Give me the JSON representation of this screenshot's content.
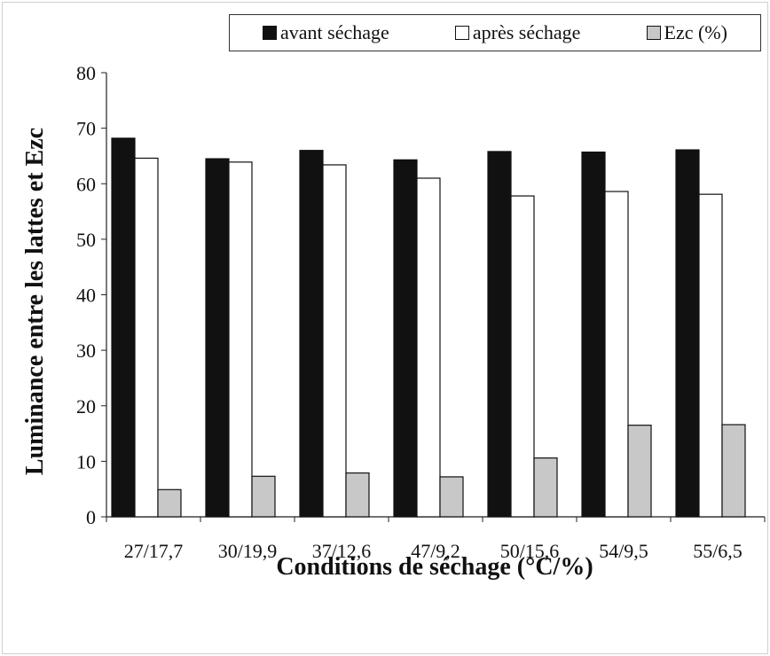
{
  "chart_data": {
    "type": "bar",
    "categories": [
      "27/17,7",
      "30/19,9",
      "37/12,6",
      "47/9,2",
      "50/15,6",
      "54/9,5",
      "55/6,5"
    ],
    "series": [
      {
        "name": "avant séchage",
        "values": [
          68.2,
          64.5,
          66.0,
          64.3,
          65.8,
          65.7,
          66.1
        ],
        "color": "#111111"
      },
      {
        "name": "après séchage",
        "values": [
          64.6,
          63.9,
          63.4,
          61.0,
          57.8,
          58.6,
          58.1
        ],
        "color": "#ffffff"
      },
      {
        "name": "Ezc (%)",
        "values": [
          4.9,
          7.3,
          7.9,
          7.2,
          10.6,
          16.5,
          16.6
        ],
        "color": "#c8c8c8"
      }
    ],
    "xlabel": "Conditions de séchage (°C/%)",
    "ylabel": "Luminance entre les lattes et Ezc",
    "ylim": [
      0,
      80
    ],
    "yticks": [
      0,
      10,
      20,
      30,
      40,
      50,
      60,
      70,
      80
    ],
    "grid": false,
    "legend_position": "top-right"
  }
}
